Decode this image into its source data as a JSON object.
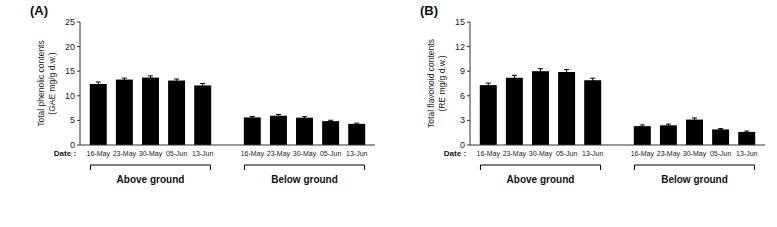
{
  "chart_data": [
    {
      "type": "bar",
      "title": "(A)",
      "ylabel": [
        "Total phenolic contents",
        "(GAE mg/g d.w.)"
      ],
      "xlabel": "Date :",
      "groups": [
        "Above ground",
        "Below ground"
      ],
      "categories": [
        "16-May",
        "23-May",
        "30-May",
        "05-Jun",
        "13-Jun",
        "16-May",
        "23-May",
        "30-May",
        "05-Jun",
        "13-Jun"
      ],
      "values": [
        12.4,
        13.3,
        13.7,
        13.1,
        12.1,
        5.6,
        5.95,
        5.55,
        4.85,
        4.3
      ],
      "errors": [
        0.4,
        0.3,
        0.35,
        0.3,
        0.4,
        0.2,
        0.25,
        0.2,
        0.18,
        0.15
      ],
      "color": "#000000",
      "ylim": [
        0,
        25
      ],
      "yticks": [
        0,
        5,
        10,
        15,
        20,
        25
      ],
      "grid": false
    },
    {
      "type": "bar",
      "title": "(B)",
      "ylabel": [
        "Total flavonoid contents",
        "(RE mg/g d.w.)"
      ],
      "xlabel": "Date :",
      "groups": [
        "Above ground",
        "Below ground"
      ],
      "categories": [
        "16-May",
        "23-May",
        "30-May",
        "05-Jun",
        "13-Jun",
        "16-May",
        "23-May",
        "30-May",
        "05-Jun",
        "13-Jun"
      ],
      "values": [
        7.3,
        8.2,
        9.0,
        8.9,
        7.9,
        2.3,
        2.4,
        3.1,
        1.9,
        1.6
      ],
      "errors": [
        0.25,
        0.3,
        0.3,
        0.3,
        0.25,
        0.15,
        0.15,
        0.2,
        0.1,
        0.1
      ],
      "color": "#000000",
      "ylim": [
        0,
        15
      ],
      "yticks": [
        0,
        3,
        6,
        9,
        12,
        15
      ],
      "grid": false
    }
  ]
}
